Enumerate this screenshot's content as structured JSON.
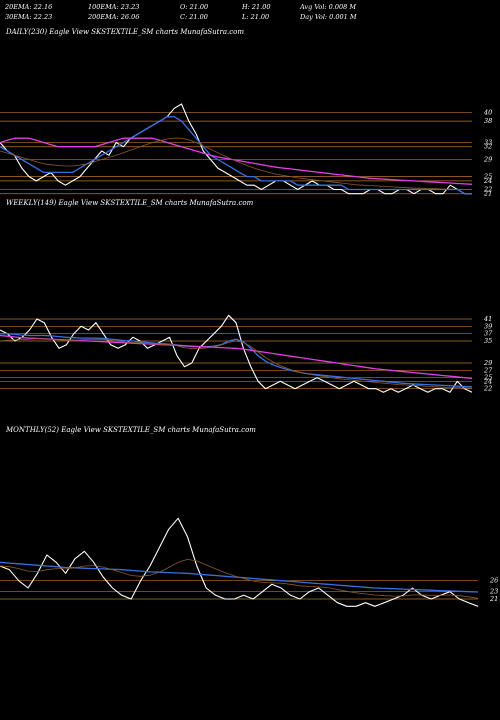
{
  "header": {
    "row1": [
      "20EMA: 22.16",
      "100EMA: 23.23",
      "O: 21.00",
      "H: 21.00",
      "Avg Vol: 0.008 M"
    ],
    "row2": [
      "30EMA: 22.23",
      "200EMA: 26.06",
      "C: 21.00",
      "L: 21.00",
      "Day Vol: 0.001 M"
    ]
  },
  "panels": [
    {
      "label": "DAILY(230) Eagle   View  SKSTEXTILE_SM charts MunafaSutra.com"
    },
    {
      "label": "WEEKLY(149) Eagle   View  SKSTEXTILE_SM charts MunafaSutra.com"
    },
    {
      "label": "MONTHLY(52) Eagle   View  SKSTEXTILE_SM charts MunafaSutra.com"
    }
  ],
  "colors": {
    "background": "#000000",
    "price": "#ffffff",
    "ema_blue": "#3a6fe0",
    "ema_magenta": "#e040e0",
    "ema_brown": "#8b5a2b",
    "level": "#b8732e"
  },
  "chart_data": [
    {
      "type": "line",
      "title": "DAILY(230)",
      "ylim": [
        20,
        42
      ],
      "level_ticks": [
        40,
        38,
        33,
        32,
        29,
        25,
        24,
        22,
        21
      ],
      "series": [
        {
          "role": "price",
          "values": [
            33,
            31,
            30,
            27,
            25,
            24,
            25,
            26,
            24,
            23,
            24,
            25,
            27,
            29,
            31,
            30,
            33,
            32,
            34,
            35,
            36,
            37,
            38,
            39,
            41,
            42,
            38,
            35,
            31,
            29,
            27,
            26,
            25,
            24,
            23,
            23,
            22,
            23,
            24,
            24,
            23,
            22,
            23,
            24,
            23,
            23,
            22,
            22,
            21,
            21,
            21,
            22,
            22,
            21,
            21,
            22,
            22,
            21,
            22,
            22,
            21,
            21,
            23,
            22,
            21,
            21
          ]
        },
        {
          "role": "ema_blue",
          "values": [
            32,
            31,
            30,
            29,
            28,
            27,
            26,
            26,
            26,
            26,
            26,
            27,
            28,
            29,
            30,
            31,
            32,
            33,
            34,
            35,
            36,
            37,
            38,
            39,
            39,
            38,
            36,
            34,
            32,
            30,
            29,
            28,
            27,
            26,
            25,
            25,
            24,
            24,
            24,
            24,
            24,
            23,
            23,
            23,
            23,
            23,
            23,
            23,
            22,
            22,
            22,
            22,
            22,
            22,
            22,
            22,
            22,
            22,
            22,
            22,
            22,
            22,
            22,
            22,
            21,
            21
          ]
        },
        {
          "role": "ema_magenta",
          "values": [
            33,
            33.5,
            34,
            34,
            34,
            33.5,
            33,
            32.5,
            32,
            32,
            32,
            32,
            32,
            32,
            32.5,
            33,
            33.5,
            34,
            34,
            34,
            34,
            34,
            33.5,
            33,
            32.5,
            32,
            31.5,
            31,
            30.5,
            30,
            29.6,
            29.3,
            29,
            28.7,
            28.4,
            28.1,
            27.8,
            27.5,
            27.2,
            27,
            26.8,
            26.6,
            26.4,
            26.2,
            26,
            25.8,
            25.6,
            25.4,
            25.2,
            25,
            24.8,
            24.6,
            24.5,
            24.4,
            24.3,
            24.2,
            24.1,
            24,
            23.9,
            23.8,
            23.7,
            23.6,
            23.5,
            23.4,
            23.3,
            23.2
          ]
        },
        {
          "role": "ema_brown",
          "values": [
            31,
            30.5,
            30,
            29.5,
            29,
            28.5,
            28,
            27.8,
            27.6,
            27.5,
            27.5,
            27.7,
            28,
            28.5,
            29,
            29.5,
            30,
            30.6,
            31.2,
            31.8,
            32.4,
            33,
            33.4,
            33.8,
            34,
            34,
            33.6,
            33,
            32.2,
            31.4,
            30.6,
            29.8,
            29,
            28.3,
            27.6,
            27,
            26.5,
            26,
            25.6,
            25.3,
            25,
            24.7,
            24.5,
            24.3,
            24.1,
            23.9,
            23.7,
            23.5,
            23.3,
            23.1,
            23,
            22.9,
            22.8,
            22.7,
            22.6,
            22.5,
            22.4,
            22.3,
            22.3,
            22.2,
            22.2,
            22.1,
            22.1,
            22,
            22,
            22
          ]
        }
      ]
    },
    {
      "type": "line",
      "title": "WEEKLY(149)",
      "ylim": [
        20,
        44
      ],
      "level_ticks": [
        41,
        39,
        37,
        35,
        29,
        27,
        25,
        24,
        22
      ],
      "series": [
        {
          "role": "price",
          "values": [
            38,
            37,
            35,
            36,
            38,
            41,
            40,
            36,
            33,
            34,
            37,
            39,
            38,
            40,
            37,
            34,
            33,
            34,
            36,
            35,
            33,
            34,
            35,
            36,
            31,
            28,
            29,
            33,
            35,
            37,
            39,
            42,
            40,
            33,
            28,
            24,
            22,
            23,
            24,
            23,
            22,
            23,
            24,
            25,
            24,
            23,
            22,
            23,
            24,
            23,
            22,
            22,
            21,
            22,
            21,
            22,
            23,
            22,
            21,
            22,
            22,
            21,
            24,
            22,
            21
          ]
        },
        {
          "role": "ema_blue",
          "values": [
            37,
            37,
            36.8,
            36.6,
            36.5,
            36.5,
            36.5,
            36.4,
            36.2,
            36,
            35.9,
            35.8,
            35.8,
            35.8,
            35.7,
            35.5,
            35.3,
            35.1,
            35,
            34.8,
            34.6,
            34.4,
            34.3,
            34.1,
            33.9,
            33.7,
            33.5,
            33.4,
            33.4,
            33.6,
            34,
            35,
            35.5,
            34.8,
            33,
            31,
            29.5,
            28.5,
            27.8,
            27.2,
            26.7,
            26.3,
            26,
            25.8,
            25.6,
            25.4,
            25.2,
            25,
            24.8,
            24.6,
            24.4,
            24.2,
            24,
            23.8,
            23.6,
            23.4,
            23.3,
            23.2,
            23.1,
            23,
            22.9,
            22.8,
            22.7,
            22.6,
            22.5
          ]
        },
        {
          "role": "ema_magenta",
          "values": [
            36.5,
            36.3,
            36.1,
            35.9,
            35.8,
            35.7,
            35.6,
            35.5,
            35.4,
            35.3,
            35.2,
            35.1,
            35,
            34.9,
            34.8,
            34.7,
            34.6,
            34.5,
            34.4,
            34.3,
            34.2,
            34.1,
            34,
            33.9,
            33.8,
            33.7,
            33.6,
            33.5,
            33.4,
            33.3,
            33.2,
            33.1,
            33,
            32.8,
            32.5,
            32.2,
            31.9,
            31.6,
            31.3,
            31,
            30.7,
            30.4,
            30.1,
            29.8,
            29.5,
            29.2,
            28.9,
            28.6,
            28.3,
            28,
            27.7,
            27.4,
            27.2,
            27,
            26.8,
            26.6,
            26.4,
            26.2,
            26,
            25.8,
            25.6,
            25.4,
            25.2,
            25,
            24.8
          ]
        },
        {
          "role": "ema_brown",
          "values": [
            35,
            35.2,
            35.3,
            35.4,
            35.5,
            35.6,
            35.6,
            35.5,
            35.3,
            35.2,
            35.2,
            35.3,
            35.4,
            35.5,
            35.4,
            35.2,
            34.9,
            34.7,
            34.6,
            34.5,
            34.3,
            34.2,
            34.1,
            34.1,
            33.7,
            33.2,
            32.9,
            32.9,
            33.1,
            33.4,
            33.9,
            34.6,
            35,
            34.6,
            33.5,
            32,
            30.5,
            29.3,
            28.3,
            27.5,
            26.8,
            26.3,
            25.9,
            25.6,
            25.3,
            25,
            24.7,
            24.5,
            24.3,
            24.1,
            23.9,
            23.7,
            23.5,
            23.3,
            23.1,
            23,
            22.9,
            22.8,
            22.6,
            22.5,
            22.4,
            22.3,
            22.3,
            22.2,
            22.1
          ]
        }
      ]
    },
    {
      "type": "line",
      "title": "MONTHLY(52)",
      "ylim": [
        18,
        48
      ],
      "level_ticks": [
        26,
        23,
        21
      ],
      "series": [
        {
          "role": "price",
          "values": [
            30,
            29,
            26,
            24,
            28,
            33,
            31,
            28,
            32,
            34,
            31,
            27,
            24,
            22,
            21,
            26,
            30,
            35,
            40,
            43,
            38,
            30,
            24,
            22,
            21,
            21,
            22,
            21,
            23,
            25,
            24,
            22,
            21,
            23,
            24,
            22,
            20,
            19,
            19,
            20,
            19,
            20,
            21,
            22,
            24,
            22,
            21,
            22,
            23,
            21,
            20,
            19
          ]
        },
        {
          "role": "ema_blue",
          "values": [
            31,
            30.8,
            30.6,
            30.4,
            30.2,
            30,
            29.8,
            29.6,
            29.5,
            29.4,
            29.3,
            29.2,
            29.1,
            29,
            28.8,
            28.6,
            28.4,
            28.3,
            28.2,
            28.1,
            28,
            27.8,
            27.6,
            27.4,
            27.2,
            27,
            26.8,
            26.6,
            26.4,
            26.2,
            26,
            25.8,
            25.6,
            25.4,
            25.2,
            25,
            24.8,
            24.6,
            24.4,
            24.2,
            24,
            23.9,
            23.8,
            23.7,
            23.6,
            23.5,
            23.4,
            23.3,
            23.2,
            23.1,
            23,
            22.9
          ]
        },
        {
          "role": "ema_brown",
          "values": [
            30,
            29.8,
            29.3,
            28.6,
            28.5,
            29,
            29.3,
            29.2,
            29.5,
            30,
            30.1,
            29.7,
            29,
            28.2,
            27.4,
            27.2,
            27.5,
            28.3,
            29.6,
            31,
            31.8,
            31.4,
            30.3,
            29.2,
            28.2,
            27.3,
            26.6,
            25.9,
            25.5,
            25.4,
            25.3,
            25,
            24.6,
            24.4,
            24.3,
            24.1,
            23.6,
            23.1,
            22.7,
            22.4,
            22.1,
            21.9,
            21.8,
            21.8,
            22.1,
            22.1,
            22,
            22,
            22.1,
            21.9,
            21.6,
            21.2
          ]
        }
      ]
    }
  ]
}
